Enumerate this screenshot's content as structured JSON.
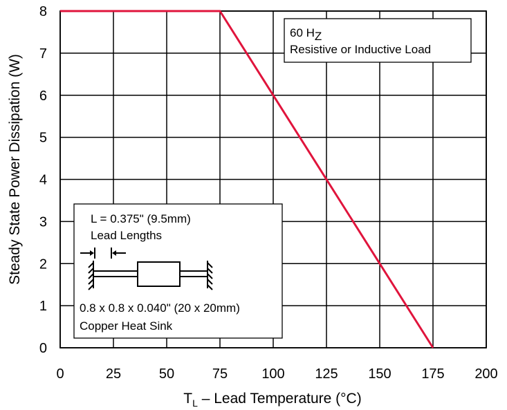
{
  "chart_data": {
    "type": "line",
    "title": "",
    "xlabel_main": "T",
    "xlabel_sub": "L",
    "xlabel_rest": " – Lead Temperature (°C)",
    "ylabel": "Steady State Power Dissipation (W)",
    "xlim": [
      0,
      200
    ],
    "ylim": [
      0,
      8
    ],
    "x_ticks": [
      "0",
      "25",
      "50",
      "75",
      "100",
      "125",
      "150",
      "175",
      "200"
    ],
    "y_ticks": [
      "0",
      "1",
      "2",
      "3",
      "4",
      "5",
      "6",
      "7",
      "8"
    ],
    "grid": true,
    "series": [
      {
        "color": "#e0143c",
        "x": [
          0,
          75,
          175
        ],
        "y": [
          8,
          8,
          0
        ]
      }
    ]
  },
  "annotations": {
    "freq_main": "60 H",
    "freq_sub": "Z",
    "load": "Resistive or Inductive Load",
    "lead_length": "L = 0.375\" (9.5mm)",
    "lead_lengths_label": "Lead Lengths",
    "heat_sink_dims": "0.8 x 0.8 x 0.040\" (20 x 20mm)",
    "heat_sink_label": "Copper Heat Sink"
  }
}
